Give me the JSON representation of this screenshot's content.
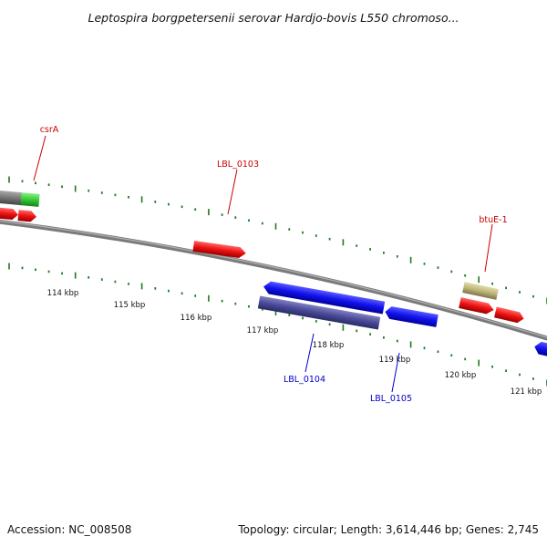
{
  "title": "Leptospira borgpetersenii serovar Hardjo-bovis L550 chromoso...",
  "footer": {
    "accession": "Accession: NC_008508",
    "summary": "Topology: circular; Length: 3,614,446 bp; Genes: 2,745"
  },
  "colors": {
    "backbone": "#808080",
    "tick": "#1f7a1f",
    "forward_label": "#cc0000",
    "reverse_label": "#0000cc",
    "gene_red": "#ee1111",
    "gene_blue": "#1212ee",
    "gene_navy": "#4a4a9a",
    "gene_green": "#33cc33",
    "gene_gray": "#777777",
    "gene_khaki": "#bdb57a"
  },
  "kbp_labels": [
    "114 kbp",
    "115 kbp",
    "116 kbp",
    "117 kbp",
    "118 kbp",
    "119 kbp",
    "120 kbp",
    "121 kbp"
  ],
  "gene_labels": [
    {
      "name": "csrA",
      "strand": "forward"
    },
    {
      "name": "LBL_0103",
      "strand": "forward"
    },
    {
      "name": "btuE-1",
      "strand": "forward"
    },
    {
      "name": "LBL_0104",
      "strand": "reverse"
    },
    {
      "name": "LBL_0105",
      "strand": "reverse"
    }
  ]
}
